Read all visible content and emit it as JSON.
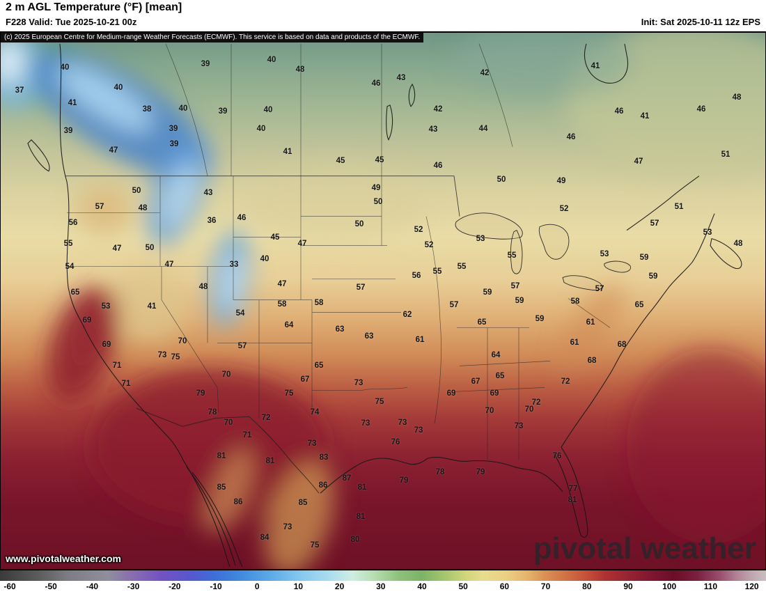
{
  "header": {
    "title": "2 m AGL Temperature (°F) [mean]",
    "valid_line": "F228 Valid: Tue 2025-10-21 00z",
    "init_line": "Init: Sat 2025-10-11 12z EPS",
    "copyright": "(c) 2025 European Centre for Medium-range Weather Forecasts (ECMWF). This service is based on data and products of the ECMWF."
  },
  "map": {
    "watermark": "pivotal weather",
    "website": "www.pivotalweather.com",
    "unit": "°F",
    "labels": [
      [
        40,
        93,
        97
      ],
      [
        39,
        295,
        92
      ],
      [
        40,
        390,
        86
      ],
      [
        48,
        431,
        100
      ],
      [
        42,
        696,
        105
      ],
      [
        41,
        855,
        95
      ],
      [
        37,
        28,
        130
      ],
      [
        40,
        170,
        126
      ],
      [
        46,
        540,
        120
      ],
      [
        43,
        576,
        112
      ],
      [
        48,
        1058,
        140
      ],
      [
        41,
        104,
        148
      ],
      [
        38,
        211,
        157
      ],
      [
        40,
        263,
        156
      ],
      [
        39,
        320,
        160
      ],
      [
        40,
        385,
        158
      ],
      [
        42,
        629,
        157
      ],
      [
        46,
        889,
        160
      ],
      [
        46,
        1007,
        157
      ],
      [
        41,
        926,
        167
      ],
      [
        39,
        98,
        188
      ],
      [
        39,
        249,
        185
      ],
      [
        40,
        375,
        185
      ],
      [
        43,
        622,
        186
      ],
      [
        44,
        694,
        185
      ],
      [
        46,
        820,
        197
      ],
      [
        47,
        163,
        216
      ],
      [
        39,
        250,
        207
      ],
      [
        41,
        413,
        218
      ],
      [
        45,
        489,
        231
      ],
      [
        45,
        545,
        230
      ],
      [
        46,
        629,
        238
      ],
      [
        47,
        917,
        232
      ],
      [
        51,
        1042,
        222
      ],
      [
        50,
        196,
        274
      ],
      [
        43,
        299,
        277
      ],
      [
        49,
        540,
        270
      ],
      [
        50,
        720,
        258
      ],
      [
        49,
        806,
        260
      ],
      [
        57,
        143,
        297
      ],
      [
        48,
        205,
        299
      ],
      [
        36,
        304,
        317
      ],
      [
        46,
        347,
        313
      ],
      [
        50,
        543,
        290
      ],
      [
        52,
        810,
        300
      ],
      [
        51,
        975,
        297
      ],
      [
        56,
        105,
        320
      ],
      [
        50,
        516,
        322
      ],
      [
        52,
        601,
        330
      ],
      [
        57,
        940,
        321
      ],
      [
        53,
        1016,
        334
      ],
      [
        55,
        98,
        350
      ],
      [
        47,
        168,
        357
      ],
      [
        50,
        215,
        356
      ],
      [
        52,
        616,
        352
      ],
      [
        53,
        690,
        343
      ],
      [
        48,
        1060,
        350
      ],
      [
        45,
        395,
        341
      ],
      [
        47,
        434,
        350
      ],
      [
        55,
        735,
        367
      ],
      [
        53,
        868,
        365
      ],
      [
        59,
        925,
        370
      ],
      [
        54,
        100,
        383
      ],
      [
        47,
        243,
        380
      ],
      [
        33,
        336,
        380
      ],
      [
        40,
        380,
        372
      ],
      [
        55,
        628,
        390
      ],
      [
        55,
        663,
        383
      ],
      [
        56,
        598,
        396
      ],
      [
        59,
        938,
        397
      ],
      [
        65,
        108,
        420
      ],
      [
        48,
        292,
        412
      ],
      [
        47,
        405,
        408
      ],
      [
        57,
        518,
        413
      ],
      [
        57,
        740,
        411
      ],
      [
        57,
        861,
        415
      ],
      [
        58,
        826,
        433
      ],
      [
        53,
        152,
        440
      ],
      [
        41,
        218,
        440
      ],
      [
        54,
        345,
        450
      ],
      [
        58,
        405,
        437
      ],
      [
        58,
        458,
        435
      ],
      [
        57,
        652,
        438
      ],
      [
        59,
        700,
        420
      ],
      [
        59,
        746,
        432
      ],
      [
        65,
        918,
        438
      ],
      [
        69,
        125,
        460
      ],
      [
        64,
        415,
        467
      ],
      [
        62,
        585,
        452
      ],
      [
        63,
        488,
        473
      ],
      [
        65,
        692,
        463
      ],
      [
        59,
        775,
        458
      ],
      [
        61,
        848,
        463
      ],
      [
        69,
        153,
        495
      ],
      [
        70,
        262,
        490
      ],
      [
        57,
        348,
        497
      ],
      [
        63,
        530,
        483
      ],
      [
        61,
        603,
        488
      ],
      [
        64,
        712,
        510
      ],
      [
        61,
        825,
        492
      ],
      [
        68,
        893,
        495
      ],
      [
        71,
        168,
        525
      ],
      [
        73,
        233,
        510
      ],
      [
        75,
        252,
        513
      ],
      [
        65,
        458,
        525
      ],
      [
        67,
        438,
        545
      ],
      [
        73,
        515,
        550
      ],
      [
        65,
        718,
        540
      ],
      [
        67,
        683,
        548
      ],
      [
        68,
        850,
        518
      ],
      [
        72,
        812,
        548
      ],
      [
        70,
        325,
        538
      ],
      [
        71,
        181,
        551
      ],
      [
        79,
        288,
        565
      ],
      [
        75,
        415,
        565
      ],
      [
        75,
        545,
        577
      ],
      [
        69,
        648,
        565
      ],
      [
        69,
        710,
        565
      ],
      [
        72,
        770,
        578
      ],
      [
        70,
        760,
        588
      ],
      [
        78,
        305,
        592
      ],
      [
        72,
        382,
        600
      ],
      [
        74,
        452,
        592
      ],
      [
        73,
        525,
        608
      ],
      [
        73,
        578,
        607
      ],
      [
        73,
        601,
        618
      ],
      [
        70,
        703,
        590
      ],
      [
        73,
        745,
        612
      ],
      [
        70,
        328,
        607
      ],
      [
        71,
        355,
        625
      ],
      [
        73,
        448,
        637
      ],
      [
        76,
        568,
        635
      ],
      [
        81,
        318,
        655
      ],
      [
        81,
        388,
        662
      ],
      [
        83,
        465,
        657
      ],
      [
        78,
        632,
        678
      ],
      [
        79,
        690,
        678
      ],
      [
        79,
        580,
        690
      ],
      [
        76,
        800,
        655
      ],
      [
        77,
        823,
        702
      ],
      [
        85,
        318,
        700
      ],
      [
        86,
        342,
        721
      ],
      [
        85,
        435,
        722
      ],
      [
        86,
        464,
        697
      ],
      [
        87,
        498,
        687
      ],
      [
        81,
        520,
        700
      ],
      [
        81,
        822,
        718
      ],
      [
        73,
        413,
        757
      ],
      [
        81,
        518,
        742
      ],
      [
        84,
        380,
        772
      ],
      [
        80,
        510,
        775
      ],
      [
        75,
        452,
        783
      ]
    ]
  },
  "colorbar": {
    "min": -60,
    "max": 120,
    "ticks": [
      -60,
      -50,
      -40,
      -30,
      -20,
      -10,
      0,
      10,
      20,
      30,
      40,
      50,
      60,
      70,
      80,
      90,
      100,
      110,
      120
    ],
    "stops": [
      [
        0,
        "#3a3a3a"
      ],
      [
        5,
        "#5c5c5c"
      ],
      [
        9,
        "#7d7d85"
      ],
      [
        14,
        "#8f8f9c"
      ],
      [
        17,
        "#8a6fae"
      ],
      [
        21,
        "#7352c2"
      ],
      [
        25,
        "#5558cf"
      ],
      [
        28,
        "#3e6ed8"
      ],
      [
        31,
        "#3f86dd"
      ],
      [
        35,
        "#5aa7e6"
      ],
      [
        39,
        "#83c7ee"
      ],
      [
        43,
        "#aadcf0"
      ],
      [
        46,
        "#cfeee2"
      ],
      [
        49,
        "#b4dcae"
      ],
      [
        52,
        "#8ec27c"
      ],
      [
        55,
        "#7cb368"
      ],
      [
        58,
        "#a4c56e"
      ],
      [
        61,
        "#d2d67c"
      ],
      [
        63,
        "#e8dc8e"
      ],
      [
        66,
        "#ecd083"
      ],
      [
        69,
        "#e4b269"
      ],
      [
        71,
        "#db9354"
      ],
      [
        74,
        "#d06f45"
      ],
      [
        77,
        "#c14b38"
      ],
      [
        79,
        "#ad3232"
      ],
      [
        82,
        "#962432"
      ],
      [
        85,
        "#7f1630"
      ],
      [
        88,
        "#6b0e27"
      ],
      [
        91,
        "#79203f"
      ],
      [
        94,
        "#9a4e6e"
      ],
      [
        96,
        "#b07e92"
      ],
      [
        98,
        "#bfa3ad"
      ],
      [
        100,
        "#c9bfc2"
      ]
    ]
  }
}
